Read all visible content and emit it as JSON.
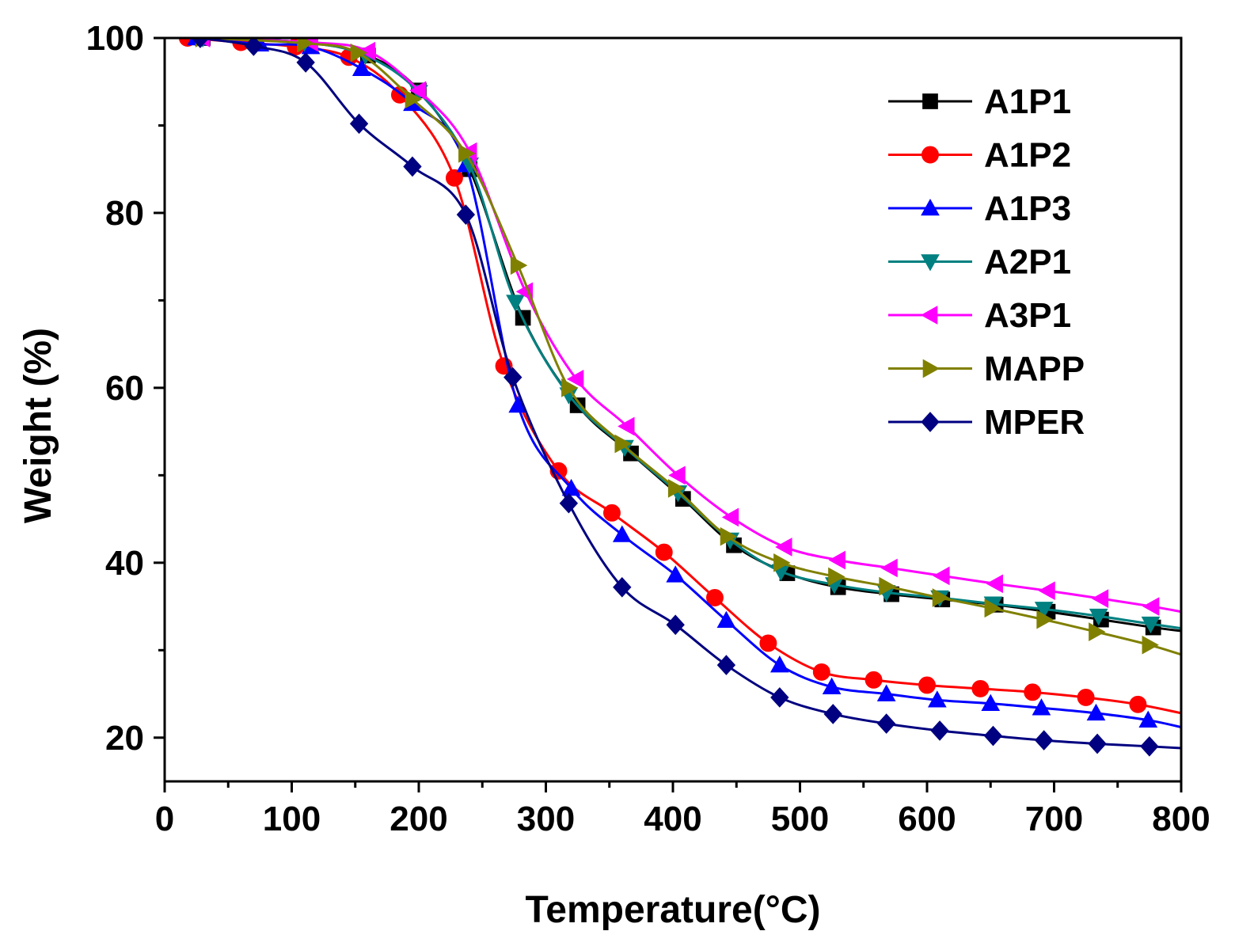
{
  "chart_data": {
    "type": "line",
    "xlabel": "Temperature(°C)",
    "ylabel": "Weight (%)",
    "xlim": [
      0,
      800
    ],
    "ylim": [
      15,
      100
    ],
    "xticks": [
      "0",
      "100",
      "200",
      "300",
      "400",
      "500",
      "600",
      "700",
      "800"
    ],
    "yticks": [
      "20",
      "40",
      "60",
      "80",
      "100"
    ],
    "grid": false,
    "legend_position": "top-right",
    "series": [
      {
        "name": "A1P1",
        "color": "#000000",
        "marker": "square",
        "points": [
          [
            30,
            100
          ],
          [
            110,
            99.5
          ],
          [
            160,
            98
          ],
          [
            200,
            94
          ],
          [
            240,
            85
          ],
          [
            282,
            68
          ],
          [
            325,
            58
          ],
          [
            367,
            52.5
          ],
          [
            408,
            47.3
          ],
          [
            448,
            42
          ],
          [
            490,
            38.8
          ],
          [
            530,
            37.2
          ],
          [
            572,
            36.4
          ],
          [
            612,
            35.8
          ],
          [
            654,
            35.2
          ],
          [
            695,
            34.4
          ],
          [
            737,
            33.5
          ],
          [
            778,
            32.6
          ],
          [
            800,
            32.2
          ]
        ]
      },
      {
        "name": "A1P2",
        "color": "#ff0000",
        "marker": "circle",
        "points": [
          [
            18,
            100
          ],
          [
            60,
            99.5
          ],
          [
            103,
            99
          ],
          [
            145,
            97.8
          ],
          [
            185,
            93.5
          ],
          [
            228,
            84
          ],
          [
            267,
            62.5
          ],
          [
            310,
            50.5
          ],
          [
            352,
            45.7
          ],
          [
            393,
            41.2
          ],
          [
            433,
            36
          ],
          [
            475,
            30.8
          ],
          [
            517,
            27.5
          ],
          [
            558,
            26.6
          ],
          [
            600,
            26
          ],
          [
            642,
            25.6
          ],
          [
            683,
            25.2
          ],
          [
            725,
            24.6
          ],
          [
            766,
            23.8
          ],
          [
            800,
            22.8
          ]
        ]
      },
      {
        "name": "A1P3",
        "color": "#0000ff",
        "marker": "triangle-up",
        "points": [
          [
            25,
            100
          ],
          [
            75,
            99.3
          ],
          [
            115,
            99
          ],
          [
            155,
            96.5
          ],
          [
            195,
            92.5
          ],
          [
            237,
            85.5
          ],
          [
            278,
            58
          ],
          [
            320,
            48.5
          ],
          [
            360,
            43.2
          ],
          [
            402,
            38.6
          ],
          [
            442,
            33.4
          ],
          [
            484,
            28.3
          ],
          [
            525,
            25.8
          ],
          [
            568,
            25
          ],
          [
            608,
            24.3
          ],
          [
            650,
            23.9
          ],
          [
            690,
            23.4
          ],
          [
            733,
            22.8
          ],
          [
            774,
            22
          ],
          [
            800,
            21.2
          ]
        ]
      },
      {
        "name": "A2P1",
        "color": "#008080",
        "marker": "triangle-down",
        "points": [
          [
            30,
            100
          ],
          [
            110,
            99.5
          ],
          [
            158,
            98
          ],
          [
            200,
            93.8
          ],
          [
            240,
            85.5
          ],
          [
            276,
            69.8
          ],
          [
            318,
            59.2
          ],
          [
            362,
            53.2
          ],
          [
            404,
            48
          ],
          [
            445,
            42.6
          ],
          [
            485,
            39
          ],
          [
            527,
            37.5
          ],
          [
            568,
            36.6
          ],
          [
            610,
            36
          ],
          [
            652,
            35.3
          ],
          [
            692,
            34.7
          ],
          [
            735,
            33.9
          ],
          [
            776,
            33
          ],
          [
            800,
            32.5
          ]
        ]
      },
      {
        "name": "A3P1",
        "color": "#ff00ff",
        "marker": "triangle-left",
        "points": [
          [
            30,
            100
          ],
          [
            115,
            99.5
          ],
          [
            160,
            98.5
          ],
          [
            200,
            94
          ],
          [
            240,
            87
          ],
          [
            284,
            71
          ],
          [
            324,
            61
          ],
          [
            364,
            55.6
          ],
          [
            404,
            50
          ],
          [
            446,
            45.2
          ],
          [
            488,
            41.8
          ],
          [
            530,
            40.3
          ],
          [
            571,
            39.4
          ],
          [
            612,
            38.5
          ],
          [
            654,
            37.6
          ],
          [
            695,
            36.8
          ],
          [
            737,
            35.9
          ],
          [
            777,
            35
          ],
          [
            800,
            34.4
          ]
        ]
      },
      {
        "name": "MAPP",
        "color": "#808000",
        "marker": "triangle-right",
        "points": [
          [
            30,
            100
          ],
          [
            110,
            99.4
          ],
          [
            152,
            98.3
          ],
          [
            195,
            93
          ],
          [
            237,
            86.8
          ],
          [
            278,
            74
          ],
          [
            318,
            60
          ],
          [
            360,
            53.6
          ],
          [
            402,
            48.5
          ],
          [
            443,
            43
          ],
          [
            485,
            40
          ],
          [
            528,
            38.4
          ],
          [
            568,
            37.3
          ],
          [
            610,
            36
          ],
          [
            651,
            34.8
          ],
          [
            692,
            33.5
          ],
          [
            733,
            32.1
          ],
          [
            775,
            30.6
          ],
          [
            800,
            29.5
          ]
        ]
      },
      {
        "name": "MPER",
        "color": "#000080",
        "marker": "diamond",
        "points": [
          [
            28,
            100
          ],
          [
            70,
            99.1
          ],
          [
            111,
            97.2
          ],
          [
            153,
            90.2
          ],
          [
            195,
            85.3
          ],
          [
            237,
            79.8
          ],
          [
            274,
            61.2
          ],
          [
            318,
            46.8
          ],
          [
            360,
            37.2
          ],
          [
            402,
            32.9
          ],
          [
            442,
            28.3
          ],
          [
            484,
            24.6
          ],
          [
            526,
            22.7
          ],
          [
            568,
            21.6
          ],
          [
            610,
            20.8
          ],
          [
            652,
            20.2
          ],
          [
            692,
            19.7
          ],
          [
            734,
            19.3
          ],
          [
            775,
            19
          ],
          [
            800,
            18.8
          ]
        ]
      }
    ]
  }
}
